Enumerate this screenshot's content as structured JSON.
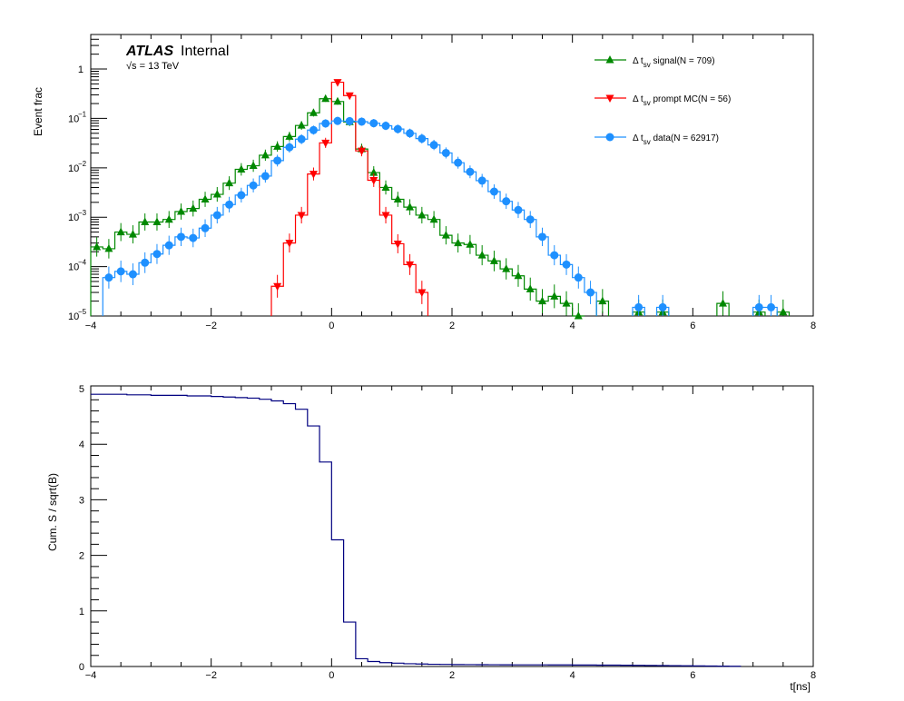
{
  "chart_data": [
    {
      "type": "line",
      "title": "",
      "ylabel": "Event frac",
      "xlabel": "",
      "xlim": [
        -4,
        8
      ],
      "ylim": [
        1e-05,
        5
      ],
      "log_y": true,
      "grid": false,
      "legend_position": "top-right",
      "x_ticks": [
        "−4",
        "−2",
        "0",
        "2",
        "4",
        "6",
        "8"
      ],
      "y_tick_labels": [
        "10",
        "10",
        "10",
        "10",
        "1"
      ],
      "y_tick_exponents": [
        "−5",
        "−4",
        "−3",
        "−2",
        "−1"
      ],
      "atlas": {
        "brand": "ATLAS",
        "label": "Internal",
        "energy": "√s = 13 TeV"
      },
      "series": [
        {
          "name": "Δ t signal(N = 709)",
          "legend_main": "Δ t",
          "legend_sub": "sv",
          "legend_rest": " signal(N = 709)",
          "color": "#008800",
          "marker": "triangle-up",
          "x": [
            -3.9,
            -3.7,
            -3.5,
            -3.3,
            -3.1,
            -2.9,
            -2.7,
            -2.5,
            -2.3,
            -2.1,
            -1.9,
            -1.7,
            -1.5,
            -1.3,
            -1.1,
            -0.9,
            -0.7,
            -0.5,
            -0.3,
            -0.1,
            0.1,
            0.3,
            0.5,
            0.7,
            0.9,
            1.1,
            1.3,
            1.5,
            1.7,
            1.9,
            2.1,
            2.3,
            2.5,
            2.7,
            2.9,
            3.1,
            3.3,
            3.5,
            3.7,
            3.9,
            4.1,
            4.5,
            5.1,
            5.5,
            6.5,
            7.1,
            7.5
          ],
          "y": [
            0.00025,
            0.00023,
            0.0005,
            0.00045,
            0.0008,
            0.0008,
            0.0009,
            0.0013,
            0.0015,
            0.0023,
            0.0029,
            0.0049,
            0.0093,
            0.011,
            0.018,
            0.027,
            0.043,
            0.072,
            0.13,
            0.25,
            0.22,
            0.085,
            0.024,
            0.008,
            0.004,
            0.0023,
            0.0016,
            0.0011,
            0.0009,
            0.00043,
            0.0003,
            0.00028,
            0.00017,
            0.00013,
            9e-05,
            6.5e-05,
            3.5e-05,
            2e-05,
            2.5e-05,
            1.8e-05,
            1e-05,
            2e-05,
            1.2e-05,
            1.2e-05,
            1.8e-05,
            1.2e-05,
            1.2e-05
          ]
        },
        {
          "name": "Δ t prompt MC(N = 56)",
          "legend_main": "Δ t",
          "legend_sub": "sv",
          "legend_rest": " prompt MC(N = 56)",
          "color": "#ff0000",
          "marker": "triangle-down",
          "x": [
            -0.9,
            -0.7,
            -0.5,
            -0.3,
            -0.1,
            0.1,
            0.3,
            0.5,
            0.7,
            0.9,
            1.1,
            1.3,
            1.5
          ],
          "y": [
            4e-05,
            0.0003,
            0.0011,
            0.0075,
            0.032,
            0.54,
            0.29,
            0.022,
            0.0056,
            0.0011,
            0.00029,
            0.00011,
            3e-05
          ]
        },
        {
          "name": "Δ t data(N = 62917)",
          "legend_main": "Δ t",
          "legend_sub": "sv",
          "legend_rest": " data(N = 62917)",
          "color": "#1e90ff",
          "marker": "circle",
          "x": [
            -3.7,
            -3.5,
            -3.3,
            -3.1,
            -2.9,
            -2.7,
            -2.5,
            -2.3,
            -2.1,
            -1.9,
            -1.7,
            -1.5,
            -1.3,
            -1.1,
            -0.9,
            -0.7,
            -0.5,
            -0.3,
            -0.1,
            0.1,
            0.3,
            0.5,
            0.7,
            0.9,
            1.1,
            1.3,
            1.5,
            1.7,
            1.9,
            2.1,
            2.3,
            2.5,
            2.7,
            2.9,
            3.1,
            3.3,
            3.5,
            3.7,
            3.9,
            4.1,
            4.3,
            5.1,
            5.5,
            7.1,
            7.3
          ],
          "y": [
            6e-05,
            8e-05,
            7e-05,
            0.00012,
            0.00018,
            0.00027,
            0.0004,
            0.00038,
            0.0006,
            0.0011,
            0.0018,
            0.0028,
            0.0044,
            0.0068,
            0.014,
            0.026,
            0.038,
            0.058,
            0.079,
            0.089,
            0.088,
            0.086,
            0.08,
            0.071,
            0.061,
            0.05,
            0.039,
            0.029,
            0.02,
            0.0127,
            0.0083,
            0.0055,
            0.0033,
            0.0021,
            0.0014,
            0.0009,
            0.0004,
            0.00017,
            0.00011,
            6e-05,
            3e-05,
            1.5e-05,
            1.5e-05,
            1.5e-05,
            1.5e-05
          ]
        }
      ]
    },
    {
      "type": "line",
      "title": "",
      "ylabel": "Cum. S / sqrt(B)",
      "xlabel": "t[ns]",
      "xlim": [
        -4,
        8
      ],
      "ylim": [
        0,
        5.05
      ],
      "grid": false,
      "x_ticks": [
        "−4",
        "−2",
        "0",
        "2",
        "4",
        "6",
        "8"
      ],
      "y_ticks": [
        "0",
        "1",
        "2",
        "3",
        "4",
        "5"
      ],
      "series": [
        {
          "color": "#000080",
          "x": [
            -4,
            -3.8,
            -3.6,
            -3.4,
            -3.2,
            -3,
            -2.8,
            -2.6,
            -2.4,
            -2.2,
            -2,
            -1.8,
            -1.6,
            -1.4,
            -1.2,
            -1,
            -0.8,
            -0.6,
            -0.4,
            -0.2,
            0,
            0.2,
            0.4,
            0.6,
            0.8,
            1,
            1.2,
            1.4,
            1.6,
            1.8,
            2,
            2.2,
            2.4,
            2.6,
            2.8,
            3,
            3.2,
            3.4,
            3.6,
            3.8,
            4,
            4.2,
            4.4,
            4.6,
            4.8,
            5,
            5.2,
            5.4,
            5.6,
            5.8,
            6,
            6.2,
            6.4,
            6.6
          ],
          "y": [
            4.9,
            4.9,
            4.9,
            4.89,
            4.89,
            4.88,
            4.88,
            4.88,
            4.87,
            4.87,
            4.86,
            4.85,
            4.84,
            4.83,
            4.81,
            4.78,
            4.73,
            4.63,
            4.33,
            3.68,
            2.28,
            0.8,
            0.14,
            0.09,
            0.07,
            0.06,
            0.05,
            0.045,
            0.04,
            0.038,
            0.035,
            0.034,
            0.033,
            0.032,
            0.031,
            0.03,
            0.03,
            0.03,
            0.029,
            0.028,
            0.027,
            0.026,
            0.025,
            0.024,
            0.022,
            0.02,
            0.018,
            0.016,
            0.014,
            0.012,
            0.01,
            0.008,
            0.006,
            0.004
          ]
        }
      ]
    }
  ]
}
